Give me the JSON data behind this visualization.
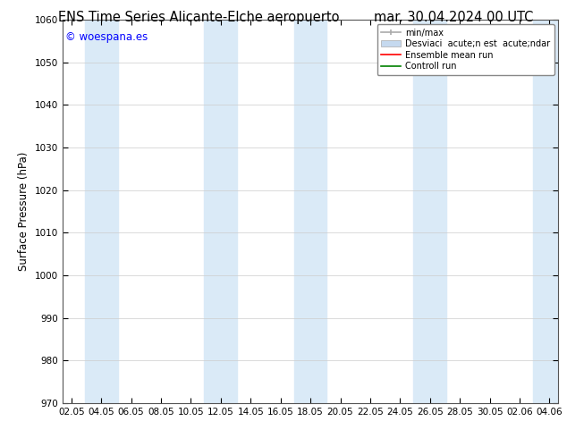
{
  "title_left": "ENS Time Series Alicante-Elche aeropuerto",
  "title_right": "mar. 30.04.2024 00 UTC",
  "ylabel": "Surface Pressure (hPa)",
  "watermark": "© woespana.es",
  "ylim": [
    970,
    1060
  ],
  "yticks": [
    970,
    980,
    990,
    1000,
    1010,
    1020,
    1030,
    1040,
    1050,
    1060
  ],
  "xtick_labels": [
    "02.05",
    "04.05",
    "06.05",
    "08.05",
    "10.05",
    "12.05",
    "14.05",
    "16.05",
    "18.05",
    "20.05",
    "22.05",
    "24.05",
    "26.05",
    "28.05",
    "30.05",
    "02.06",
    "04.06"
  ],
  "num_xticks": 17,
  "shaded_band_indices": [
    1,
    5,
    8,
    12,
    16
  ],
  "shade_color": "#daeaf7",
  "background_color": "#ffffff",
  "legend_labels": [
    "min/max",
    "Desviaci  acute;n est  acute;ndar",
    "Ensemble mean run",
    "Controll run"
  ],
  "title_fontsize": 10.5,
  "tick_fontsize": 7.5,
  "ylabel_fontsize": 8.5,
  "watermark_fontsize": 8.5
}
